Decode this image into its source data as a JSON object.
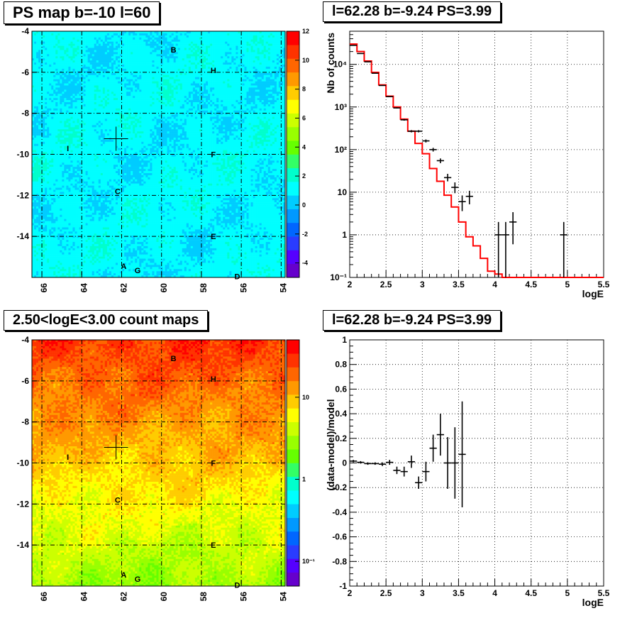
{
  "panels": {
    "ps_map": {
      "title": "PS map b=-10 l=60"
    },
    "count_map": {
      "title": "2.50<logE<3.00 count maps"
    },
    "spectrum": {
      "title": "l=62.28 b=-9.24 PS=3.99"
    },
    "residual": {
      "title": "l=62.28 b=-9.24 PS=3.99"
    }
  },
  "chart_data": [
    {
      "type": "heatmap",
      "title": "PS map b=-10 l=60",
      "x_ticks": [
        "66",
        "64",
        "62",
        "60",
        "58",
        "56",
        "54"
      ],
      "y_ticks": [
        "-4",
        "-6",
        "-8",
        "-10",
        "-12",
        "-14"
      ],
      "xlim": [
        66.5,
        53.8
      ],
      "ylim": [
        -16,
        -4
      ],
      "grid": true,
      "colorbar": {
        "scale": "linear",
        "min": -5,
        "max": 12,
        "ticks": [
          "12",
          "10",
          "8",
          "6",
          "4",
          "2",
          "0",
          "-2",
          "-4"
        ]
      },
      "marker": {
        "l": 62.28,
        "b": -9.24
      },
      "labels": [
        {
          "text": "B",
          "l": 59.4,
          "b": -4.9
        },
        {
          "text": "H",
          "l": 57.4,
          "b": -5.9
        },
        {
          "text": "I",
          "l": 64.7,
          "b": -9.7
        },
        {
          "text": "F",
          "l": 57.4,
          "b": -10.0
        },
        {
          "text": "C",
          "l": 62.2,
          "b": -11.8
        },
        {
          "text": "E",
          "l": 57.4,
          "b": -14.0
        },
        {
          "text": "A",
          "l": 61.9,
          "b": -15.45
        },
        {
          "text": "G",
          "l": 61.2,
          "b": -15.65
        },
        {
          "text": "D",
          "l": 56.2,
          "b": -15.95
        }
      ]
    },
    {
      "type": "heatmap",
      "title": "2.50<logE<3.00 count maps",
      "x_ticks": [
        "66",
        "64",
        "62",
        "60",
        "58",
        "56",
        "54"
      ],
      "y_ticks": [
        "-4",
        "-6",
        "-8",
        "-10",
        "-12",
        "-14"
      ],
      "xlim": [
        66.5,
        53.8
      ],
      "ylim": [
        -16,
        -4
      ],
      "grid": true,
      "colorbar": {
        "scale": "log",
        "min": 0.05,
        "max": 50,
        "ticks": [
          "10",
          "1",
          "10⁻¹"
        ]
      },
      "marker": {
        "l": 62.28,
        "b": -9.24
      },
      "labels": [
        {
          "text": "B",
          "l": 59.4,
          "b": -4.9
        },
        {
          "text": "H",
          "l": 57.4,
          "b": -5.9
        },
        {
          "text": "I",
          "l": 64.7,
          "b": -9.7
        },
        {
          "text": "F",
          "l": 57.4,
          "b": -10.0
        },
        {
          "text": "C",
          "l": 62.2,
          "b": -11.8
        },
        {
          "text": "E",
          "l": 57.4,
          "b": -14.0
        },
        {
          "text": "A",
          "l": 61.9,
          "b": -15.45
        },
        {
          "text": "G",
          "l": 61.2,
          "b": -15.65
        },
        {
          "text": "D",
          "l": 56.2,
          "b": -15.95
        }
      ]
    },
    {
      "type": "line",
      "title": "l=62.28 b=-9.24 PS=3.99",
      "xlabel": "logE",
      "ylabel": "Nb of counts",
      "xlim": [
        2,
        5.5
      ],
      "ylim": [
        0.1,
        60000
      ],
      "yscale": "log",
      "x_ticks": [
        "2",
        "2.5",
        "3",
        "3.5",
        "4",
        "4.5",
        "5",
        "5.5"
      ],
      "y_ticks": [
        {
          "v": 10000,
          "t": "10⁴"
        },
        {
          "v": 1000,
          "t": "10³"
        },
        {
          "v": 100,
          "t": "10²"
        },
        {
          "v": 10,
          "t": "10"
        },
        {
          "v": 1,
          "t": "1"
        },
        {
          "v": 0.1,
          "t": "10⁻¹"
        }
      ],
      "grid": true,
      "model_color": "#ff0000",
      "model_steps": {
        "edges": [
          2.0,
          2.1,
          2.2,
          2.3,
          2.4,
          2.5,
          2.6,
          2.7,
          2.8,
          2.9,
          3.0,
          3.1,
          3.2,
          3.3,
          3.4,
          3.5,
          3.6,
          3.7,
          3.8,
          3.9,
          4.0,
          4.1,
          4.2,
          5.5
        ],
        "values": [
          30000,
          20000,
          12000,
          6500,
          3300,
          1800,
          1000,
          520,
          270,
          140,
          80,
          36,
          18,
          8.5,
          4.5,
          2.0,
          0.9,
          0.55,
          0.28,
          0.14,
          0.12,
          0.1,
          0.1
        ]
      },
      "data_points": [
        {
          "x": 2.05,
          "y": 28000,
          "ylo": 27600,
          "yhi": 28400
        },
        {
          "x": 2.15,
          "y": 18000,
          "ylo": 17700,
          "yhi": 18300
        },
        {
          "x": 2.25,
          "y": 11500,
          "ylo": 11300,
          "yhi": 11700
        },
        {
          "x": 2.35,
          "y": 6200,
          "ylo": 6100,
          "yhi": 6300
        },
        {
          "x": 2.45,
          "y": 3200,
          "ylo": 3140,
          "yhi": 3260
        },
        {
          "x": 2.55,
          "y": 1750,
          "ylo": 1710,
          "yhi": 1790
        },
        {
          "x": 2.65,
          "y": 950,
          "ylo": 920,
          "yhi": 980
        },
        {
          "x": 2.75,
          "y": 500,
          "ylo": 478,
          "yhi": 522
        },
        {
          "x": 2.85,
          "y": 270,
          "ylo": 254,
          "yhi": 286
        },
        {
          "x": 2.95,
          "y": 270,
          "ylo": 254,
          "yhi": 286
        },
        {
          "x": 3.05,
          "y": 160,
          "ylo": 147,
          "yhi": 173
        },
        {
          "x": 3.15,
          "y": 100,
          "ylo": 90,
          "yhi": 110
        },
        {
          "x": 3.25,
          "y": 55,
          "ylo": 48,
          "yhi": 62
        },
        {
          "x": 3.35,
          "y": 22,
          "ylo": 18,
          "yhi": 27
        },
        {
          "x": 3.45,
          "y": 13,
          "ylo": 9.5,
          "yhi": 17
        },
        {
          "x": 3.55,
          "y": 6,
          "ylo": 3.6,
          "yhi": 8.4
        },
        {
          "x": 3.65,
          "y": 8,
          "ylo": 5.2,
          "yhi": 10.8
        },
        {
          "x": 4.05,
          "y": 1,
          "ylo": 0.1,
          "yhi": 2.0
        },
        {
          "x": 4.15,
          "y": 1,
          "ylo": 0.1,
          "yhi": 2.0
        },
        {
          "x": 4.25,
          "y": 2,
          "ylo": 0.6,
          "yhi": 3.4
        },
        {
          "x": 4.95,
          "y": 1,
          "ylo": 0.1,
          "yhi": 2.0
        }
      ]
    },
    {
      "type": "scatter",
      "title": "l=62.28 b=-9.24 PS=3.99",
      "xlabel": "logE",
      "ylabel": "(data-model)/model",
      "xlim": [
        2,
        5.5
      ],
      "ylim": [
        -1,
        1
      ],
      "x_ticks": [
        "2",
        "2.5",
        "3",
        "3.5",
        "4",
        "4.5",
        "5",
        "5.5"
      ],
      "y_ticks": [
        "1",
        "0.8",
        "0.6",
        "0.4",
        "0.2",
        "0",
        "-0.2",
        "-0.4",
        "-0.6",
        "-0.8",
        "-1"
      ],
      "grid": true,
      "data_points": [
        {
          "x": 2.05,
          "y": 0.015,
          "err": 0.01
        },
        {
          "x": 2.15,
          "y": 0.005,
          "err": 0.01
        },
        {
          "x": 2.25,
          "y": -0.005,
          "err": 0.01
        },
        {
          "x": 2.35,
          "y": -0.005,
          "err": 0.01
        },
        {
          "x": 2.45,
          "y": -0.01,
          "err": 0.015
        },
        {
          "x": 2.55,
          "y": 0.005,
          "err": 0.02
        },
        {
          "x": 2.65,
          "y": -0.06,
          "err": 0.03
        },
        {
          "x": 2.75,
          "y": -0.07,
          "err": 0.04
        },
        {
          "x": 2.85,
          "y": 0.01,
          "err": 0.05
        },
        {
          "x": 2.95,
          "y": -0.16,
          "err": 0.05
        },
        {
          "x": 3.05,
          "y": -0.07,
          "err": 0.08
        },
        {
          "x": 3.15,
          "y": 0.12,
          "err": 0.11
        },
        {
          "x": 3.25,
          "y": 0.23,
          "err": 0.17
        },
        {
          "x": 3.35,
          "y": 0.0,
          "err": 0.21
        },
        {
          "x": 3.45,
          "y": 0.0,
          "err": 0.29
        },
        {
          "x": 3.55,
          "y": 0.07,
          "err": 0.43
        }
      ]
    }
  ]
}
